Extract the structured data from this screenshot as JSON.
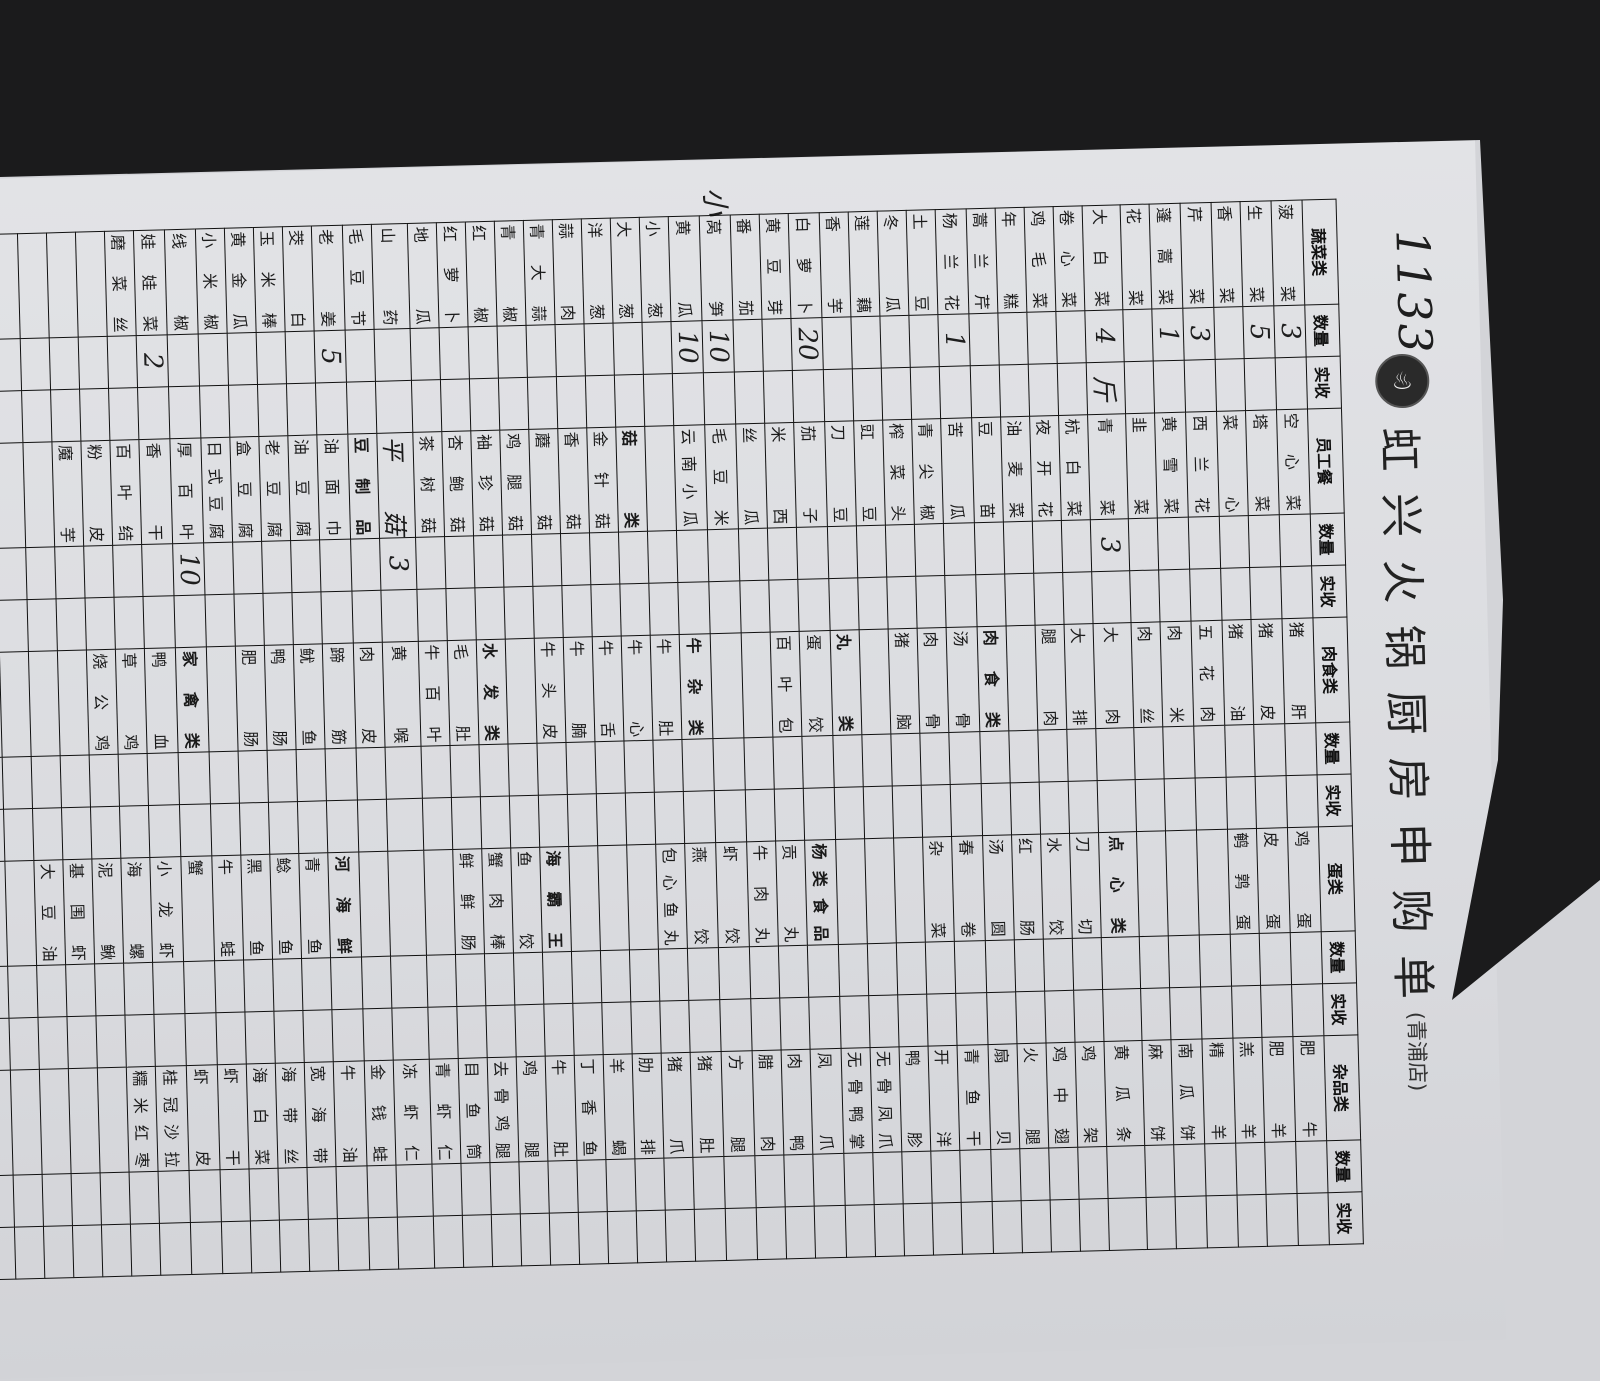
{
  "form": {
    "logo_icon": "hotpot-logo-icon",
    "title": "虹兴火锅厨房申购单",
    "branch": "(青浦店)",
    "handwritten_notes": [
      "1133",
      "小"
    ]
  },
  "table": {
    "header": [
      [
        "蔬菜类",
        "数量",
        "实收"
      ],
      [
        "员工餐",
        "数量",
        "实收"
      ],
      [
        "肉食类",
        "数量",
        "实收"
      ],
      [
        "蛋类",
        "数量",
        "实收"
      ],
      [
        "杂品类",
        "数量",
        "实收"
      ]
    ],
    "section_headers": [
      "菇类",
      "豆制品",
      "肉食类",
      "丸类",
      "牛杂类",
      "水发类",
      "家禽类",
      "点心类",
      "杨类食品",
      "海霸王",
      "河海鲜"
    ],
    "handwritten_items": [
      "平菇"
    ],
    "rows": [
      [
        [
          "菠菜",
          "3",
          ""
        ],
        [
          "空心菜",
          "",
          ""
        ],
        [
          "猪肝",
          "",
          ""
        ],
        [
          "鸡蛋",
          "",
          ""
        ],
        [
          "肥牛",
          "",
          ""
        ]
      ],
      [
        [
          "生菜",
          "5",
          ""
        ],
        [
          "塔菜",
          "",
          ""
        ],
        [
          "猪皮",
          "",
          ""
        ],
        [
          "皮蛋",
          "",
          ""
        ],
        [
          "肥羊",
          "",
          ""
        ]
      ],
      [
        [
          "香菜",
          "",
          ""
        ],
        [
          "菜心",
          "",
          ""
        ],
        [
          "猪油",
          "",
          ""
        ],
        [
          "鹌鹑蛋",
          "",
          ""
        ],
        [
          "羔羊",
          "",
          ""
        ]
      ],
      [
        [
          "芹菜",
          "3",
          ""
        ],
        [
          "西兰花",
          "",
          ""
        ],
        [
          "五花肉",
          "",
          ""
        ],
        [
          "",
          "",
          ""
        ],
        [
          "精羊",
          "",
          ""
        ]
      ],
      [
        [
          "蓬蒿菜",
          "1",
          ""
        ],
        [
          "黄雪菜",
          "",
          ""
        ],
        [
          "肉米",
          "",
          ""
        ],
        [
          "",
          "",
          ""
        ],
        [
          "南瓜饼",
          "",
          ""
        ]
      ],
      [
        [
          "花菜",
          "",
          ""
        ],
        [
          "韭菜",
          "",
          ""
        ],
        [
          "肉丝",
          "",
          ""
        ],
        [
          "",
          "",
          ""
        ],
        [
          "麻饼",
          "",
          ""
        ]
      ],
      [
        [
          "大白菜",
          "4",
          "斤"
        ],
        [
          "青菜",
          "3",
          ""
        ],
        [
          "大肉",
          "",
          ""
        ],
        [
          "点心类",
          "",
          ""
        ],
        [
          "黄瓜条",
          "",
          ""
        ]
      ],
      [
        [
          "卷心菜",
          "",
          ""
        ],
        [
          "杭白菜",
          "",
          ""
        ],
        [
          "大排",
          "",
          ""
        ],
        [
          "刀切",
          "",
          ""
        ],
        [
          "鸡架",
          "",
          ""
        ]
      ],
      [
        [
          "鸡毛菜",
          "",
          ""
        ],
        [
          "夜开花",
          "",
          ""
        ],
        [
          "腿肉",
          "",
          ""
        ],
        [
          "水饺",
          "",
          ""
        ],
        [
          "鸡中翅",
          "",
          ""
        ]
      ],
      [
        [
          "年糕",
          "",
          ""
        ],
        [
          "油麦菜",
          "",
          ""
        ],
        [
          "",
          "",
          ""
        ],
        [
          "红肠",
          "",
          ""
        ],
        [
          "火腿",
          "",
          ""
        ]
      ],
      [
        [
          "蒿兰芹",
          "",
          ""
        ],
        [
          "豆苗",
          "",
          ""
        ],
        [
          "肉食类",
          "",
          ""
        ],
        [
          "汤圆",
          "",
          ""
        ],
        [
          "扇贝",
          "",
          ""
        ]
      ],
      [
        [
          "杨兰花",
          "1",
          ""
        ],
        [
          "苦瓜",
          "",
          ""
        ],
        [
          "汤骨",
          "",
          ""
        ],
        [
          "春卷",
          "",
          ""
        ],
        [
          "青鱼干",
          "",
          ""
        ]
      ],
      [
        [
          "土豆",
          "",
          ""
        ],
        [
          "青尖椒",
          "",
          ""
        ],
        [
          "肉骨",
          "",
          ""
        ],
        [
          "杂菜",
          "",
          ""
        ],
        [
          "开洋",
          "",
          ""
        ]
      ],
      [
        [
          "冬瓜",
          "",
          ""
        ],
        [
          "榨菜头",
          "",
          ""
        ],
        [
          "猪脑",
          "",
          ""
        ],
        [
          "",
          "",
          ""
        ],
        [
          "鸭胗",
          "",
          ""
        ]
      ],
      [
        [
          "莲藕",
          "",
          ""
        ],
        [
          "豇豆",
          "",
          ""
        ],
        [
          "",
          "",
          ""
        ],
        [
          "",
          "",
          ""
        ],
        [
          "无骨凤爪",
          "",
          ""
        ]
      ],
      [
        [
          "香芋",
          "",
          ""
        ],
        [
          "刀豆",
          "",
          ""
        ],
        [
          "丸类",
          "",
          ""
        ],
        [
          "",
          "",
          ""
        ],
        [
          "无骨鸭掌",
          "",
          ""
        ]
      ],
      [
        [
          "白萝卜",
          "20",
          ""
        ],
        [
          "茄子",
          "",
          ""
        ],
        [
          "蛋饺",
          "",
          ""
        ],
        [
          "杨类食品",
          "",
          ""
        ],
        [
          "凤爪",
          "",
          ""
        ]
      ],
      [
        [
          "黄豆芽",
          "",
          ""
        ],
        [
          "米西",
          "",
          ""
        ],
        [
          "百叶包",
          "",
          ""
        ],
        [
          "贡丸",
          "",
          ""
        ],
        [
          "肉鸭",
          "",
          ""
        ]
      ],
      [
        [
          "番茄",
          "",
          ""
        ],
        [
          "丝瓜",
          "",
          ""
        ],
        [
          "",
          "",
          ""
        ],
        [
          "牛肉丸",
          "",
          ""
        ],
        [
          "腊肉",
          "",
          ""
        ]
      ],
      [
        [
          "莴笋",
          "10",
          ""
        ],
        [
          "毛豆米",
          "",
          ""
        ],
        [
          "",
          "",
          ""
        ],
        [
          "虾饺",
          "",
          ""
        ],
        [
          "方腿",
          "",
          ""
        ]
      ],
      [
        [
          "黄瓜",
          "10",
          ""
        ],
        [
          "云南小瓜",
          "",
          ""
        ],
        [
          "牛杂类",
          "",
          ""
        ],
        [
          "燕饺",
          "",
          ""
        ],
        [
          "猪肚",
          "",
          ""
        ]
      ],
      [
        [
          "小葱",
          "",
          ""
        ],
        [
          "",
          "",
          ""
        ],
        [
          "牛肚",
          "",
          ""
        ],
        [
          "包心鱼丸",
          "",
          ""
        ],
        [
          "猪爪",
          "",
          ""
        ]
      ],
      [
        [
          "大葱",
          "",
          ""
        ],
        [
          "菇类",
          "",
          ""
        ],
        [
          "牛心",
          "",
          ""
        ],
        [
          "",
          "",
          ""
        ],
        [
          "肋排",
          "",
          ""
        ]
      ],
      [
        [
          "洋葱",
          "",
          ""
        ],
        [
          "金针菇",
          "",
          ""
        ],
        [
          "牛舌",
          "",
          ""
        ],
        [
          "",
          "",
          ""
        ],
        [
          "羊蝎",
          "",
          ""
        ]
      ],
      [
        [
          "蒜肉",
          "",
          ""
        ],
        [
          "香菇",
          "",
          ""
        ],
        [
          "牛腩",
          "",
          ""
        ],
        [
          "",
          "",
          ""
        ],
        [
          "丁香鱼",
          "",
          ""
        ]
      ],
      [
        [
          "青大蒜",
          "",
          ""
        ],
        [
          "蘑菇",
          "",
          ""
        ],
        [
          "牛头皮",
          "",
          ""
        ],
        [
          "海霸王",
          "",
          ""
        ],
        [
          "牛肚",
          "",
          ""
        ]
      ],
      [
        [
          "青椒",
          "",
          ""
        ],
        [
          "鸡腿菇",
          "",
          ""
        ],
        [
          "",
          "",
          ""
        ],
        [
          "鱼饺",
          "",
          ""
        ],
        [
          "鸡腿",
          "",
          ""
        ]
      ],
      [
        [
          "红椒",
          "",
          ""
        ],
        [
          "袖珍菇",
          "",
          ""
        ],
        [
          "水发类",
          "",
          ""
        ],
        [
          "蟹肉棒",
          "",
          ""
        ],
        [
          "去骨鸡腿",
          "",
          ""
        ]
      ],
      [
        [
          "红萝卜",
          "",
          ""
        ],
        [
          "杏鲍菇",
          "",
          ""
        ],
        [
          "毛肚",
          "",
          ""
        ],
        [
          "鲜鲜肠",
          "",
          ""
        ],
        [
          "目鱼筒",
          "",
          ""
        ]
      ],
      [
        [
          "地瓜",
          "",
          ""
        ],
        [
          "茶树菇",
          "",
          ""
        ],
        [
          "牛百叶",
          "",
          ""
        ],
        [
          "",
          "",
          ""
        ],
        [
          "青虾仁",
          "",
          ""
        ]
      ],
      [
        [
          "山药",
          "",
          ""
        ],
        [
          "平菇",
          "3",
          ""
        ],
        [
          "黄喉",
          "",
          ""
        ],
        [
          "",
          "",
          ""
        ],
        [
          "冻虾仁",
          "",
          ""
        ]
      ],
      [
        [
          "毛豆节",
          "",
          ""
        ],
        [
          "豆制品",
          "",
          ""
        ],
        [
          "肉皮",
          "",
          ""
        ],
        [
          "",
          "",
          ""
        ],
        [
          "金钱蛙",
          "",
          ""
        ]
      ],
      [
        [
          "老姜",
          "5",
          ""
        ],
        [
          "油面巾",
          "",
          ""
        ],
        [
          "蹄筋",
          "",
          ""
        ],
        [
          "河海鲜",
          "",
          ""
        ],
        [
          "牛油",
          "",
          ""
        ]
      ],
      [
        [
          "茭白",
          "",
          ""
        ],
        [
          "油豆腐",
          "",
          ""
        ],
        [
          "鱿鱼",
          "",
          ""
        ],
        [
          "青鱼",
          "",
          ""
        ],
        [
          "宽海带",
          "",
          ""
        ]
      ],
      [
        [
          "玉米棒",
          "",
          ""
        ],
        [
          "老豆腐",
          "",
          ""
        ],
        [
          "鸭肠",
          "",
          ""
        ],
        [
          "鲶鱼",
          "",
          ""
        ],
        [
          "海带丝",
          "",
          ""
        ]
      ],
      [
        [
          "黄金瓜",
          "",
          ""
        ],
        [
          "盒豆腐",
          "",
          ""
        ],
        [
          "肥肠",
          "",
          ""
        ],
        [
          "黑鱼",
          "",
          ""
        ],
        [
          "海白菜",
          "",
          ""
        ]
      ],
      [
        [
          "小米椒",
          "",
          ""
        ],
        [
          "日式豆腐",
          "",
          ""
        ],
        [
          "",
          "",
          ""
        ],
        [
          "牛蛙",
          "",
          ""
        ],
        [
          "虾干",
          "",
          ""
        ]
      ],
      [
        [
          "线椒",
          "",
          ""
        ],
        [
          "厚百叶",
          "10",
          ""
        ],
        [
          "家禽类",
          "",
          ""
        ],
        [
          "蟹",
          "",
          ""
        ],
        [
          "虾皮",
          "",
          ""
        ]
      ],
      [
        [
          "娃娃菜",
          "2",
          ""
        ],
        [
          "香干",
          "",
          ""
        ],
        [
          "鸭血",
          "",
          ""
        ],
        [
          "小龙虾",
          "",
          ""
        ],
        [
          "桂冠沙拉",
          "",
          ""
        ]
      ],
      [
        [
          "磨菜丝",
          "",
          ""
        ],
        [
          "百叶结",
          "",
          ""
        ],
        [
          "草鸡",
          "",
          ""
        ],
        [
          "海螺",
          "",
          ""
        ],
        [
          "糯米红枣",
          "",
          ""
        ]
      ],
      [
        [
          "",
          "",
          ""
        ],
        [
          "粉皮",
          "",
          ""
        ],
        [
          "烧公鸡",
          "",
          ""
        ],
        [
          "泥鳅",
          "",
          ""
        ],
        [
          "",
          "",
          ""
        ]
      ],
      [
        [
          "",
          "",
          ""
        ],
        [
          "魔芋",
          "",
          ""
        ],
        [
          "",
          "",
          ""
        ],
        [
          "基围虾",
          "",
          ""
        ],
        [
          "",
          "",
          ""
        ]
      ],
      [
        [
          "",
          "",
          ""
        ],
        [
          "",
          "",
          ""
        ],
        [
          "",
          "",
          ""
        ],
        [
          "大豆油",
          "",
          ""
        ],
        [
          "",
          "",
          ""
        ]
      ],
      [
        [
          "",
          "",
          ""
        ],
        [
          "",
          "",
          ""
        ],
        [
          "",
          "",
          ""
        ],
        [
          "",
          "",
          ""
        ],
        [
          "",
          "",
          ""
        ]
      ],
      [
        [
          "",
          "",
          ""
        ],
        [
          "",
          "",
          ""
        ],
        [
          "",
          "",
          ""
        ],
        [
          "",
          "",
          ""
        ],
        [
          "",
          "",
          ""
        ]
      ]
    ]
  }
}
